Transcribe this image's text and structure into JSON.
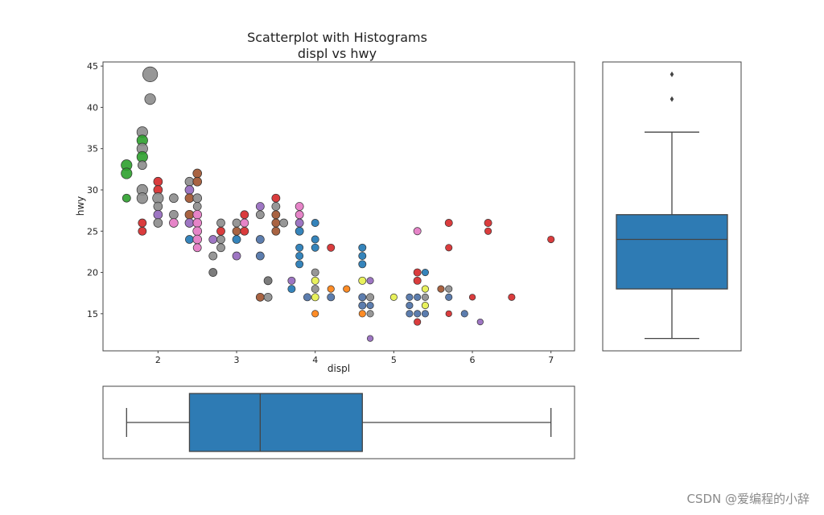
{
  "chart_data": [
    {
      "id": "scatter",
      "type": "scatter",
      "title": "Scatterplot with Histograms",
      "subtitle": "displ vs hwy",
      "xlabel": "displ",
      "ylabel": "hwy",
      "xlim": [
        1.3,
        7.3
      ],
      "ylim": [
        10.5,
        45.5
      ],
      "xticks": [
        2,
        3,
        4,
        5,
        6,
        7
      ],
      "yticks": [
        15,
        20,
        25,
        30,
        35,
        40,
        45
      ],
      "grid": false,
      "colors": {
        "red": "#d62728",
        "gray": "#8c8c8c",
        "green": "#2ca02c",
        "blue": "#1f77b4",
        "purple": "#9467bd",
        "pink": "#e377c2",
        "brown": "#a0522d",
        "orange": "#ff7f0e",
        "yellow": "#e5f04a",
        "slate": "#4a6fa5",
        "darkgray": "#6e6e6e"
      },
      "points": [
        {
          "x": 1.9,
          "y": 44,
          "c": "gray",
          "s": 2.2
        },
        {
          "x": 1.9,
          "y": 41,
          "c": "gray",
          "s": 1.6
        },
        {
          "x": 1.8,
          "y": 37,
          "c": "gray",
          "s": 1.6
        },
        {
          "x": 1.8,
          "y": 36,
          "c": "green",
          "s": 1.6
        },
        {
          "x": 1.8,
          "y": 35,
          "c": "gray",
          "s": 1.6
        },
        {
          "x": 1.8,
          "y": 34,
          "c": "green",
          "s": 1.6
        },
        {
          "x": 1.8,
          "y": 33,
          "c": "gray",
          "s": 1.3
        },
        {
          "x": 1.6,
          "y": 33,
          "c": "green",
          "s": 1.6
        },
        {
          "x": 1.6,
          "y": 32,
          "c": "green",
          "s": 1.6
        },
        {
          "x": 1.8,
          "y": 30,
          "c": "gray",
          "s": 1.6
        },
        {
          "x": 1.8,
          "y": 29,
          "c": "gray",
          "s": 1.6
        },
        {
          "x": 1.6,
          "y": 29,
          "c": "green",
          "s": 1.2
        },
        {
          "x": 1.8,
          "y": 26,
          "c": "red",
          "s": 1.2
        },
        {
          "x": 1.8,
          "y": 25,
          "c": "red",
          "s": 1.2
        },
        {
          "x": 2.0,
          "y": 31,
          "c": "red",
          "s": 1.3
        },
        {
          "x": 2.0,
          "y": 30,
          "c": "red",
          "s": 1.3
        },
        {
          "x": 2.0,
          "y": 29,
          "c": "gray",
          "s": 1.6
        },
        {
          "x": 2.0,
          "y": 28,
          "c": "gray",
          "s": 1.3
        },
        {
          "x": 2.0,
          "y": 27,
          "c": "purple",
          "s": 1.3
        },
        {
          "x": 2.0,
          "y": 26,
          "c": "gray",
          "s": 1.3
        },
        {
          "x": 2.2,
          "y": 29,
          "c": "gray",
          "s": 1.3
        },
        {
          "x": 2.2,
          "y": 27,
          "c": "gray",
          "s": 1.3
        },
        {
          "x": 2.2,
          "y": 26,
          "c": "pink",
          "s": 1.3
        },
        {
          "x": 2.4,
          "y": 31,
          "c": "gray",
          "s": 1.3
        },
        {
          "x": 2.4,
          "y": 30,
          "c": "purple",
          "s": 1.3
        },
        {
          "x": 2.4,
          "y": 29,
          "c": "brown",
          "s": 1.3
        },
        {
          "x": 2.4,
          "y": 27,
          "c": "brown",
          "s": 1.3
        },
        {
          "x": 2.4,
          "y": 26,
          "c": "purple",
          "s": 1.3
        },
        {
          "x": 2.4,
          "y": 24,
          "c": "blue",
          "s": 1.2
        },
        {
          "x": 2.5,
          "y": 32,
          "c": "brown",
          "s": 1.3
        },
        {
          "x": 2.5,
          "y": 31,
          "c": "brown",
          "s": 1.3
        },
        {
          "x": 2.5,
          "y": 29,
          "c": "gray",
          "s": 1.3
        },
        {
          "x": 2.5,
          "y": 28,
          "c": "gray",
          "s": 1.2
        },
        {
          "x": 2.5,
          "y": 27,
          "c": "pink",
          "s": 1.3
        },
        {
          "x": 2.5,
          "y": 26,
          "c": "pink",
          "s": 1.3
        },
        {
          "x": 2.5,
          "y": 25,
          "c": "pink",
          "s": 1.3
        },
        {
          "x": 2.5,
          "y": 24,
          "c": "pink",
          "s": 1.3
        },
        {
          "x": 2.5,
          "y": 23,
          "c": "pink",
          "s": 1.2
        },
        {
          "x": 2.7,
          "y": 24,
          "c": "purple",
          "s": 1.2
        },
        {
          "x": 2.7,
          "y": 22,
          "c": "gray",
          "s": 1.2
        },
        {
          "x": 2.7,
          "y": 20,
          "c": "darkgray",
          "s": 1.2
        },
        {
          "x": 2.8,
          "y": 26,
          "c": "gray",
          "s": 1.2
        },
        {
          "x": 2.8,
          "y": 25,
          "c": "red",
          "s": 1.2
        },
        {
          "x": 2.8,
          "y": 24,
          "c": "gray",
          "s": 1.2
        },
        {
          "x": 2.8,
          "y": 23,
          "c": "gray",
          "s": 1.2
        },
        {
          "x": 3.0,
          "y": 26,
          "c": "gray",
          "s": 1.2
        },
        {
          "x": 3.0,
          "y": 25,
          "c": "brown",
          "s": 1.2
        },
        {
          "x": 3.0,
          "y": 24,
          "c": "blue",
          "s": 1.2
        },
        {
          "x": 3.0,
          "y": 22,
          "c": "purple",
          "s": 1.2
        },
        {
          "x": 3.1,
          "y": 27,
          "c": "red",
          "s": 1.2
        },
        {
          "x": 3.1,
          "y": 26,
          "c": "pink",
          "s": 1.2
        },
        {
          "x": 3.1,
          "y": 25,
          "c": "red",
          "s": 1.2
        },
        {
          "x": 3.3,
          "y": 28,
          "c": "purple",
          "s": 1.2
        },
        {
          "x": 3.3,
          "y": 27,
          "c": "gray",
          "s": 1.2
        },
        {
          "x": 3.3,
          "y": 24,
          "c": "slate",
          "s": 1.2
        },
        {
          "x": 3.3,
          "y": 22,
          "c": "slate",
          "s": 1.2
        },
        {
          "x": 3.3,
          "y": 17,
          "c": "brown",
          "s": 1.2
        },
        {
          "x": 3.4,
          "y": 19,
          "c": "darkgray",
          "s": 1.2
        },
        {
          "x": 3.4,
          "y": 17,
          "c": "gray",
          "s": 1.2
        },
        {
          "x": 3.5,
          "y": 29,
          "c": "red",
          "s": 1.2
        },
        {
          "x": 3.5,
          "y": 28,
          "c": "gray",
          "s": 1.2
        },
        {
          "x": 3.5,
          "y": 27,
          "c": "brown",
          "s": 1.2
        },
        {
          "x": 3.5,
          "y": 26,
          "c": "brown",
          "s": 1.2
        },
        {
          "x": 3.5,
          "y": 25,
          "c": "brown",
          "s": 1.2
        },
        {
          "x": 3.6,
          "y": 26,
          "c": "gray",
          "s": 1.2
        },
        {
          "x": 3.7,
          "y": 19,
          "c": "purple",
          "s": 1.1
        },
        {
          "x": 3.7,
          "y": 18,
          "c": "blue",
          "s": 1.1
        },
        {
          "x": 3.8,
          "y": 28,
          "c": "pink",
          "s": 1.2
        },
        {
          "x": 3.8,
          "y": 27,
          "c": "pink",
          "s": 1.2
        },
        {
          "x": 3.8,
          "y": 26,
          "c": "purple",
          "s": 1.2
        },
        {
          "x": 3.8,
          "y": 25,
          "c": "blue",
          "s": 1.2
        },
        {
          "x": 3.8,
          "y": 23,
          "c": "blue",
          "s": 1.1
        },
        {
          "x": 3.8,
          "y": 22,
          "c": "blue",
          "s": 1.1
        },
        {
          "x": 3.8,
          "y": 21,
          "c": "blue",
          "s": 1.1
        },
        {
          "x": 3.9,
          "y": 17,
          "c": "slate",
          "s": 1.1
        },
        {
          "x": 4.0,
          "y": 26,
          "c": "blue",
          "s": 1.1
        },
        {
          "x": 4.0,
          "y": 24,
          "c": "blue",
          "s": 1.1
        },
        {
          "x": 4.0,
          "y": 23,
          "c": "blue",
          "s": 1.1
        },
        {
          "x": 4.0,
          "y": 20,
          "c": "gray",
          "s": 1.1
        },
        {
          "x": 4.0,
          "y": 19,
          "c": "yellow",
          "s": 1.1
        },
        {
          "x": 4.0,
          "y": 18,
          "c": "gray",
          "s": 1.1
        },
        {
          "x": 4.0,
          "y": 17,
          "c": "yellow",
          "s": 1.1
        },
        {
          "x": 4.0,
          "y": 15,
          "c": "orange",
          "s": 1.0
        },
        {
          "x": 4.2,
          "y": 23,
          "c": "red",
          "s": 1.1
        },
        {
          "x": 4.2,
          "y": 18,
          "c": "orange",
          "s": 1.0
        },
        {
          "x": 4.2,
          "y": 17,
          "c": "slate",
          "s": 1.1
        },
        {
          "x": 4.4,
          "y": 18,
          "c": "orange",
          "s": 1.0
        },
        {
          "x": 4.6,
          "y": 23,
          "c": "blue",
          "s": 1.1
        },
        {
          "x": 4.6,
          "y": 22,
          "c": "blue",
          "s": 1.1
        },
        {
          "x": 4.6,
          "y": 21,
          "c": "blue",
          "s": 1.1
        },
        {
          "x": 4.6,
          "y": 19,
          "c": "yellow",
          "s": 1.1
        },
        {
          "x": 4.6,
          "y": 17,
          "c": "slate",
          "s": 1.1
        },
        {
          "x": 4.6,
          "y": 16,
          "c": "slate",
          "s": 1.1
        },
        {
          "x": 4.6,
          "y": 15,
          "c": "orange",
          "s": 1.0
        },
        {
          "x": 4.7,
          "y": 19,
          "c": "purple",
          "s": 1.0
        },
        {
          "x": 4.7,
          "y": 17,
          "c": "gray",
          "s": 1.1
        },
        {
          "x": 4.7,
          "y": 16,
          "c": "slate",
          "s": 1.0
        },
        {
          "x": 4.7,
          "y": 15,
          "c": "gray",
          "s": 1.0
        },
        {
          "x": 4.7,
          "y": 12,
          "c": "purple",
          "s": 0.9
        },
        {
          "x": 5.0,
          "y": 17,
          "c": "yellow",
          "s": 1.0
        },
        {
          "x": 5.2,
          "y": 17,
          "c": "slate",
          "s": 1.0
        },
        {
          "x": 5.2,
          "y": 16,
          "c": "slate",
          "s": 1.0
        },
        {
          "x": 5.2,
          "y": 15,
          "c": "slate",
          "s": 1.0
        },
        {
          "x": 5.3,
          "y": 25,
          "c": "pink",
          "s": 1.1
        },
        {
          "x": 5.3,
          "y": 20,
          "c": "red",
          "s": 1.1
        },
        {
          "x": 5.3,
          "y": 19,
          "c": "red",
          "s": 1.1
        },
        {
          "x": 5.3,
          "y": 17,
          "c": "slate",
          "s": 1.0
        },
        {
          "x": 5.3,
          "y": 15,
          "c": "slate",
          "s": 1.0
        },
        {
          "x": 5.3,
          "y": 14,
          "c": "red",
          "s": 1.0
        },
        {
          "x": 5.4,
          "y": 20,
          "c": "blue",
          "s": 1.0
        },
        {
          "x": 5.4,
          "y": 18,
          "c": "yellow",
          "s": 1.0
        },
        {
          "x": 5.4,
          "y": 17,
          "c": "gray",
          "s": 1.0
        },
        {
          "x": 5.4,
          "y": 16,
          "c": "yellow",
          "s": 1.0
        },
        {
          "x": 5.4,
          "y": 15,
          "c": "slate",
          "s": 1.0
        },
        {
          "x": 5.6,
          "y": 18,
          "c": "brown",
          "s": 1.0
        },
        {
          "x": 5.7,
          "y": 26,
          "c": "red",
          "s": 1.1
        },
        {
          "x": 5.7,
          "y": 23,
          "c": "red",
          "s": 1.0
        },
        {
          "x": 5.7,
          "y": 18,
          "c": "gray",
          "s": 1.0
        },
        {
          "x": 5.7,
          "y": 17,
          "c": "slate",
          "s": 1.0
        },
        {
          "x": 5.7,
          "y": 15,
          "c": "red",
          "s": 0.9
        },
        {
          "x": 5.9,
          "y": 15,
          "c": "slate",
          "s": 1.0
        },
        {
          "x": 6.0,
          "y": 17,
          "c": "red",
          "s": 0.9
        },
        {
          "x": 6.1,
          "y": 14,
          "c": "purple",
          "s": 0.9
        },
        {
          "x": 6.2,
          "y": 26,
          "c": "red",
          "s": 1.1
        },
        {
          "x": 6.2,
          "y": 25,
          "c": "red",
          "s": 1.0
        },
        {
          "x": 6.5,
          "y": 17,
          "c": "red",
          "s": 1.0
        },
        {
          "x": 7.0,
          "y": 24,
          "c": "red",
          "s": 1.0
        }
      ]
    },
    {
      "id": "hwy-boxplot",
      "type": "box",
      "orient": "vertical",
      "variable": "hwy",
      "whisker_low": 12,
      "q1": 18,
      "median": 24,
      "q3": 27,
      "whisker_high": 37,
      "outliers": [
        41,
        44
      ],
      "fill": "#2e7bb4"
    },
    {
      "id": "displ-boxplot",
      "type": "box",
      "orient": "horizontal",
      "variable": "displ",
      "whisker_low": 1.6,
      "q1": 2.4,
      "median": 3.3,
      "q3": 4.6,
      "whisker_high": 7.0,
      "outliers": [],
      "fill": "#2e7bb4"
    }
  ],
  "watermark": "CSDN @爱编程的小辞"
}
